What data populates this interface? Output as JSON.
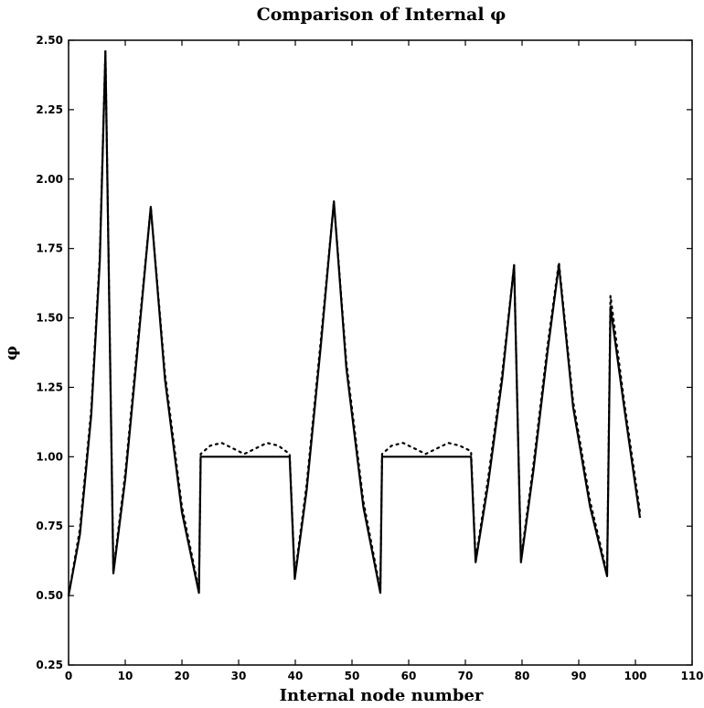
{
  "chart_data": {
    "type": "line",
    "title": "Comparison of Internal φ",
    "xlabel": "Internal node number",
    "ylabel": "φ",
    "xlim": [
      0,
      110
    ],
    "ylim": [
      0.25,
      2.5
    ],
    "x_ticks": [
      0,
      10,
      20,
      30,
      40,
      50,
      60,
      70,
      80,
      90,
      100,
      110
    ],
    "x_tick_labels": [
      "0",
      "10",
      "20",
      "30",
      "40",
      "50",
      "60",
      "70",
      "80",
      "90",
      "100",
      "110"
    ],
    "y_ticks": [
      0.25,
      0.5,
      0.75,
      1.0,
      1.25,
      1.5,
      1.75,
      2.0,
      2.25,
      2.5
    ],
    "y_tick_labels": [
      "0.25",
      "0.50",
      "0.75",
      "1.00",
      "1.25",
      "1.50",
      "1.75",
      "2.00",
      "2.25",
      "2.50"
    ],
    "grid": false,
    "legend": "none",
    "series": [
      {
        "style": "solid",
        "color": "#000000",
        "points": [
          [
            0,
            0.5
          ],
          [
            2,
            0.72
          ],
          [
            4,
            1.15
          ],
          [
            5.5,
            1.7
          ],
          [
            6.5,
            2.46
          ],
          [
            7.9,
            0.58
          ],
          [
            10,
            0.92
          ],
          [
            12,
            1.35
          ],
          [
            14.5,
            1.9
          ],
          [
            17,
            1.28
          ],
          [
            20,
            0.8
          ],
          [
            23,
            0.51
          ],
          [
            23.3,
            1.0
          ],
          [
            39,
            1.0
          ],
          [
            39.9,
            0.56
          ],
          [
            42,
            0.88
          ],
          [
            44.5,
            1.4
          ],
          [
            46.8,
            1.92
          ],
          [
            49,
            1.32
          ],
          [
            52,
            0.82
          ],
          [
            55,
            0.51
          ],
          [
            55.3,
            1.0
          ],
          [
            71,
            1.0
          ],
          [
            71.8,
            0.62
          ],
          [
            74,
            0.9
          ],
          [
            76.5,
            1.28
          ],
          [
            78.6,
            1.69
          ],
          [
            79.8,
            0.62
          ],
          [
            82,
            0.95
          ],
          [
            84.5,
            1.38
          ],
          [
            86.5,
            1.69
          ],
          [
            89,
            1.18
          ],
          [
            92,
            0.82
          ],
          [
            95,
            0.57
          ],
          [
            95.6,
            1.54
          ],
          [
            98,
            1.18
          ],
          [
            100.8,
            0.78
          ]
        ]
      },
      {
        "style": "dotted",
        "color": "#000000",
        "points": [
          [
            0,
            0.5
          ],
          [
            2,
            0.74
          ],
          [
            4,
            1.17
          ],
          [
            5.5,
            1.72
          ],
          [
            6.5,
            2.46
          ],
          [
            7.9,
            0.59
          ],
          [
            10,
            0.94
          ],
          [
            12,
            1.37
          ],
          [
            14.5,
            1.9
          ],
          [
            17,
            1.3
          ],
          [
            20,
            0.82
          ],
          [
            23,
            0.52
          ],
          [
            23.3,
            1.01
          ],
          [
            25,
            1.04
          ],
          [
            27,
            1.05
          ],
          [
            29,
            1.03
          ],
          [
            31,
            1.01
          ],
          [
            33,
            1.03
          ],
          [
            35,
            1.05
          ],
          [
            37,
            1.04
          ],
          [
            39,
            1.01
          ],
          [
            39.9,
            0.57
          ],
          [
            42,
            0.9
          ],
          [
            44.5,
            1.42
          ],
          [
            46.8,
            1.92
          ],
          [
            49,
            1.34
          ],
          [
            52,
            0.84
          ],
          [
            55,
            0.52
          ],
          [
            55.3,
            1.01
          ],
          [
            57,
            1.04
          ],
          [
            59,
            1.05
          ],
          [
            61,
            1.03
          ],
          [
            63,
            1.01
          ],
          [
            65,
            1.03
          ],
          [
            67,
            1.05
          ],
          [
            69,
            1.04
          ],
          [
            71,
            1.02
          ],
          [
            71.8,
            0.63
          ],
          [
            74,
            0.92
          ],
          [
            76.5,
            1.3
          ],
          [
            78.6,
            1.69
          ],
          [
            79.8,
            0.63
          ],
          [
            82,
            0.97
          ],
          [
            84.5,
            1.4
          ],
          [
            86.5,
            1.7
          ],
          [
            89,
            1.2
          ],
          [
            92,
            0.84
          ],
          [
            95,
            0.58
          ],
          [
            95.6,
            1.58
          ],
          [
            98,
            1.2
          ],
          [
            100.8,
            0.8
          ]
        ]
      }
    ]
  }
}
